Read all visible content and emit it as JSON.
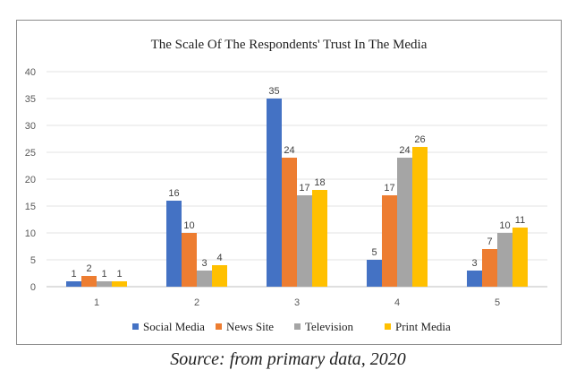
{
  "caption": "Source: from primary data, 2020",
  "chart_data": {
    "type": "bar",
    "title": "The Scale Of The Respondents' Trust In The Media",
    "xlabel": "",
    "ylabel": "",
    "categories": [
      "1",
      "2",
      "3",
      "4",
      "5"
    ],
    "ylim": [
      0,
      40
    ],
    "yticks": [
      "0",
      "5",
      "10",
      "15",
      "20",
      "25",
      "30",
      "35",
      "40"
    ],
    "grid": true,
    "legend_position": "bottom",
    "series": [
      {
        "name": "Social Media",
        "color": "#4472C4",
        "values": [
          1,
          16,
          35,
          5,
          3
        ]
      },
      {
        "name": "News Site",
        "color": "#ED7D31",
        "values": [
          2,
          10,
          24,
          17,
          7
        ]
      },
      {
        "name": "Television",
        "color": "#A5A5A5",
        "values": [
          1,
          3,
          17,
          24,
          10
        ]
      },
      {
        "name": "Print Media",
        "color": "#FFC000",
        "values": [
          1,
          4,
          18,
          26,
          11
        ]
      }
    ]
  }
}
